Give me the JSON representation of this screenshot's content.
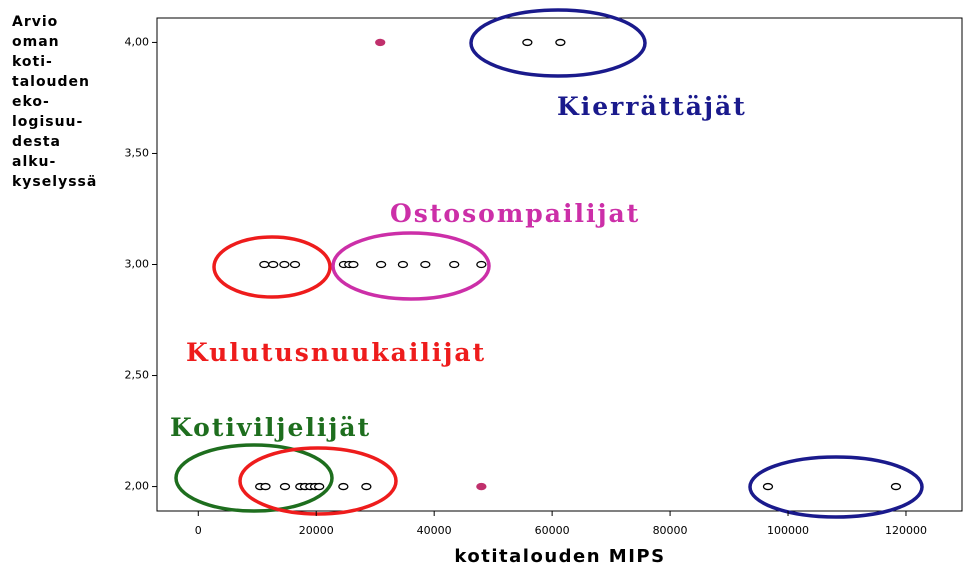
{
  "chart_data": {
    "type": "scatter",
    "ylabel": [
      "Arvio",
      "oman",
      "koti-",
      "talouden",
      "eko-",
      "logisuu-",
      "desta",
      "alku-",
      "kyselyssä"
    ],
    "xlabel": "kotitalouden MIPS",
    "xlim": [
      -7000,
      129500
    ],
    "ylim": [
      1.89,
      4.11
    ],
    "xticks": [
      0,
      20000,
      40000,
      60000,
      80000,
      100000,
      120000
    ],
    "yticks": [
      {
        "value": 2,
        "label": "2,00"
      },
      {
        "value": 2.5,
        "label": "2,50"
      },
      {
        "value": 3,
        "label": "3,00"
      },
      {
        "value": 3.5,
        "label": "3,50"
      },
      {
        "value": 4,
        "label": "4,00"
      }
    ],
    "series": [
      {
        "color": "#000000",
        "filled": false,
        "x": [
          55800,
          61400,
          11200,
          12700,
          14600,
          16400,
          24700,
          25600,
          26300,
          31000,
          34700,
          38500,
          43400,
          48000,
          10500,
          11400,
          14700,
          17300,
          18100,
          19000,
          19800,
          20500,
          24600,
          28500,
          96600,
          118300
        ],
        "values": [
          4,
          4,
          3,
          3,
          3,
          3,
          3,
          3,
          3,
          3,
          3,
          3,
          3,
          3,
          2,
          2,
          2,
          2,
          2,
          2,
          2,
          2,
          2,
          2,
          2,
          2
        ]
      },
      {
        "color": "#c0306c",
        "filled": true,
        "x": [
          30850,
          48000
        ],
        "values": [
          4,
          2
        ]
      }
    ],
    "annotations": [
      {
        "text": "Kierrättäjät",
        "color": "#1a1a8c"
      },
      {
        "text": "Ostosompailijat",
        "color": "#cc2fa8"
      },
      {
        "text": "Kulutusnuukailijat",
        "color": "#ee1c1c"
      },
      {
        "text": "Kotiviljelijät",
        "color": "#1e6e1e"
      }
    ]
  }
}
